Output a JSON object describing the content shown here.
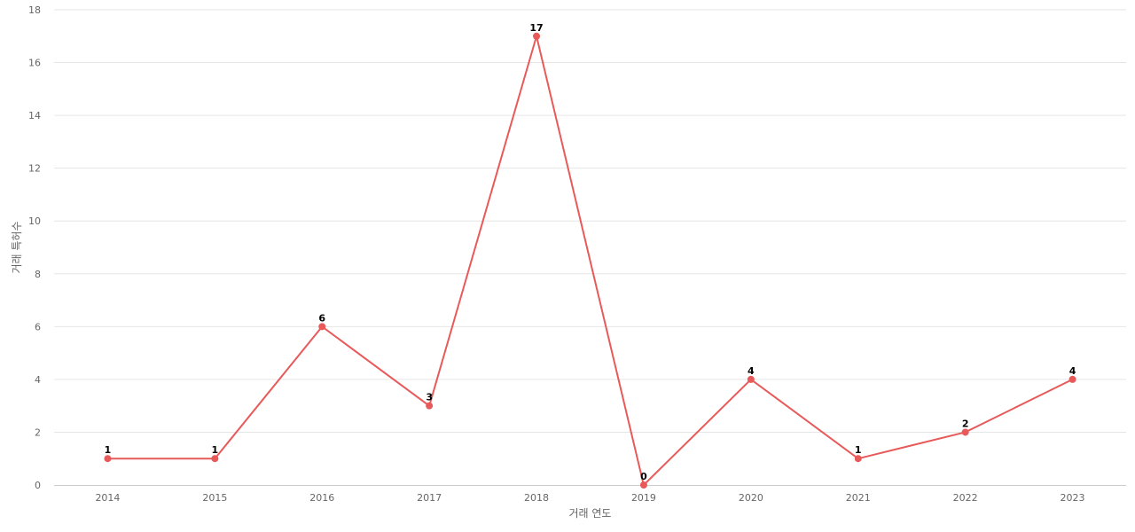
{
  "chart_data": {
    "type": "line",
    "title": "",
    "xlabel": "거래 연도",
    "ylabel": "거래 특허수",
    "categories": [
      "2014",
      "2015",
      "2016",
      "2017",
      "2018",
      "2019",
      "2020",
      "2021",
      "2022",
      "2023"
    ],
    "values": [
      1,
      1,
      6,
      3,
      17,
      0,
      4,
      1,
      2,
      4
    ],
    "ylim": [
      0,
      18
    ],
    "yticks": [
      0,
      2,
      4,
      6,
      8,
      10,
      12,
      14,
      16,
      18
    ],
    "grid": true,
    "legend": "none",
    "data_labels": true,
    "line_color": "#e85a5a",
    "marker_color": "#e85a5a"
  }
}
